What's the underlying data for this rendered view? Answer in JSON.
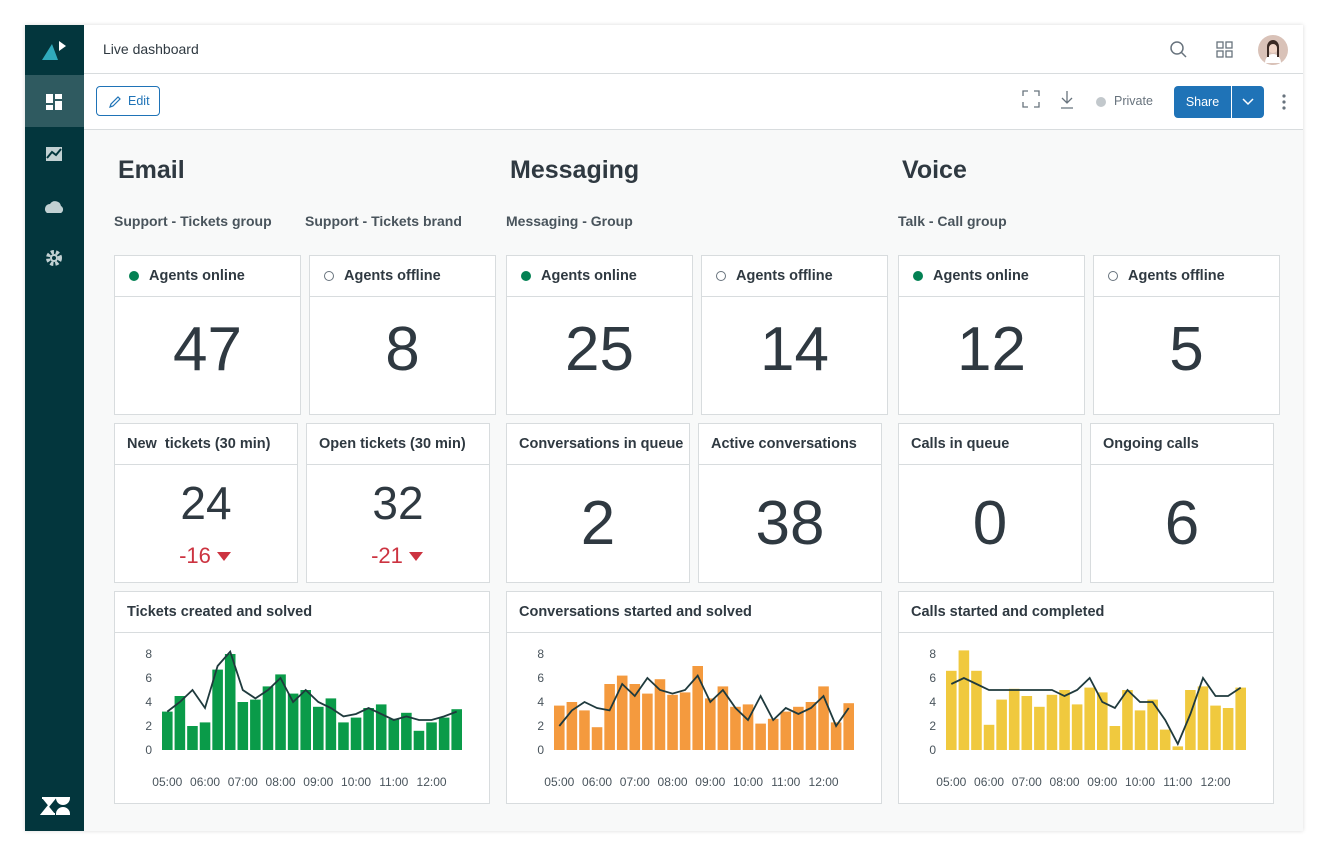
{
  "header": {
    "title": "Live dashboard"
  },
  "toolbar": {
    "edit": "Edit",
    "visibility": "Private",
    "share": "Share"
  },
  "sections": [
    {
      "title": "Email",
      "groups": [
        "Support - Tickets group",
        "Support - Tickets brand"
      ],
      "status_cards": [
        {
          "label": "Agents online",
          "value": 47,
          "online": true
        },
        {
          "label": "Agents offline",
          "value": 8,
          "online": false
        }
      ],
      "metric_cards": [
        {
          "label": "New  tickets (30 min)",
          "value": 24,
          "change": -16
        },
        {
          "label": "Open tickets (30 min)",
          "value": 32,
          "change": -21
        }
      ]
    },
    {
      "title": "Messaging",
      "groups": [
        "Messaging - Group"
      ],
      "status_cards": [
        {
          "label": "Agents online",
          "value": 25,
          "online": true
        },
        {
          "label": "Agents offline",
          "value": 14,
          "online": false
        }
      ],
      "metric_cards": [
        {
          "label": "Conversations in queue",
          "value": 2
        },
        {
          "label": "Active conversations",
          "value": 38
        }
      ]
    },
    {
      "title": "Voice",
      "groups": [
        "Talk - Call group"
      ],
      "status_cards": [
        {
          "label": "Agents online",
          "value": 12,
          "online": true
        },
        {
          "label": "Agents offline",
          "value": 5,
          "online": false
        }
      ],
      "metric_cards": [
        {
          "label": "Calls in queue",
          "value": 0
        },
        {
          "label": "Ongoing calls",
          "value": 6
        }
      ]
    }
  ],
  "chart_data": [
    {
      "type": "bar",
      "title": "Tickets created and solved",
      "categories": [
        "05:00",
        null,
        null,
        "06:00",
        null,
        null,
        "07:00",
        null,
        null,
        "08:00",
        null,
        null,
        "09:00",
        null,
        null,
        "10:00",
        null,
        null,
        "11:00",
        null,
        null,
        "12:00",
        null,
        null
      ],
      "series": [
        {
          "type": "bar",
          "color": "#0a9b49",
          "values": [
            3.2,
            4.5,
            2,
            2.3,
            6.7,
            8,
            4,
            4.2,
            5.3,
            6.3,
            4.7,
            5,
            3.6,
            4.3,
            2.3,
            2.7,
            3.5,
            3.8,
            2.6,
            3.1,
            1.6,
            2.3,
            2.7,
            3.4
          ]
        },
        {
          "type": "line",
          "color": "#1f3a3d",
          "values": [
            3.2,
            4,
            5,
            3.5,
            7,
            8.2,
            5,
            4.3,
            5,
            6,
            4,
            5,
            4,
            3.5,
            2.8,
            3,
            3.5,
            3,
            2.5,
            2.8,
            2.5,
            2.5,
            2.8,
            3.2
          ]
        }
      ],
      "ylim": [
        0,
        8.5
      ],
      "yticks": [
        0,
        2,
        4,
        6,
        8
      ]
    },
    {
      "type": "bar",
      "title": "Conversations started and solved",
      "categories": [
        "05:00",
        null,
        null,
        "06:00",
        null,
        null,
        "07:00",
        null,
        null,
        "08:00",
        null,
        null,
        "09:00",
        null,
        null,
        "10:00",
        null,
        null,
        "11:00",
        null,
        null,
        "12:00",
        null,
        null
      ],
      "series": [
        {
          "type": "bar",
          "color": "#f49a3e",
          "values": [
            3.7,
            4,
            3.3,
            1.9,
            5.5,
            6.2,
            5.5,
            4.7,
            5.9,
            4.6,
            4.8,
            7,
            4.3,
            5.3,
            3.6,
            3.8,
            2.2,
            2.6,
            3.2,
            3.6,
            4,
            5.3,
            2.3,
            3.9
          ]
        },
        {
          "type": "line",
          "color": "#1f3a3d",
          "values": [
            2,
            3.3,
            4,
            3.5,
            3.3,
            5.5,
            4.5,
            6,
            5,
            4.7,
            5,
            6.2,
            4,
            5,
            3.5,
            2.5,
            4.5,
            2.5,
            3.5,
            3,
            3.5,
            4.5,
            2,
            3.5
          ]
        }
      ],
      "ylim": [
        0,
        8.5
      ],
      "yticks": [
        0,
        2,
        4,
        6,
        8
      ]
    },
    {
      "type": "bar",
      "title": "Calls started and completed",
      "categories": [
        "05:00",
        null,
        null,
        "06:00",
        null,
        null,
        "07:00",
        null,
        null,
        "08:00",
        null,
        null,
        "09:00",
        null,
        null,
        "10:00",
        null,
        null,
        "11:00",
        null,
        null,
        "12:00",
        null,
        null
      ],
      "series": [
        {
          "type": "bar",
          "color": "#f0c93e",
          "values": [
            6.6,
            8.3,
            6.6,
            2.1,
            4.2,
            5.1,
            4.5,
            3.6,
            4.6,
            5,
            3.8,
            5.2,
            4.8,
            2,
            5,
            3.3,
            4.2,
            1.7,
            0.3,
            5,
            5.3,
            3.7,
            3.5,
            5.2
          ]
        },
        {
          "type": "line",
          "color": "#1f3a3d",
          "values": [
            5.5,
            6,
            5.5,
            5,
            5,
            5,
            5,
            5,
            5,
            4.5,
            5,
            6,
            4,
            3.5,
            5,
            4,
            4,
            2.5,
            0.5,
            3,
            6,
            4.5,
            4.5,
            5.2
          ]
        }
      ],
      "ylim": [
        0,
        8.5
      ],
      "yticks": [
        0,
        2,
        4,
        6,
        8
      ]
    }
  ]
}
